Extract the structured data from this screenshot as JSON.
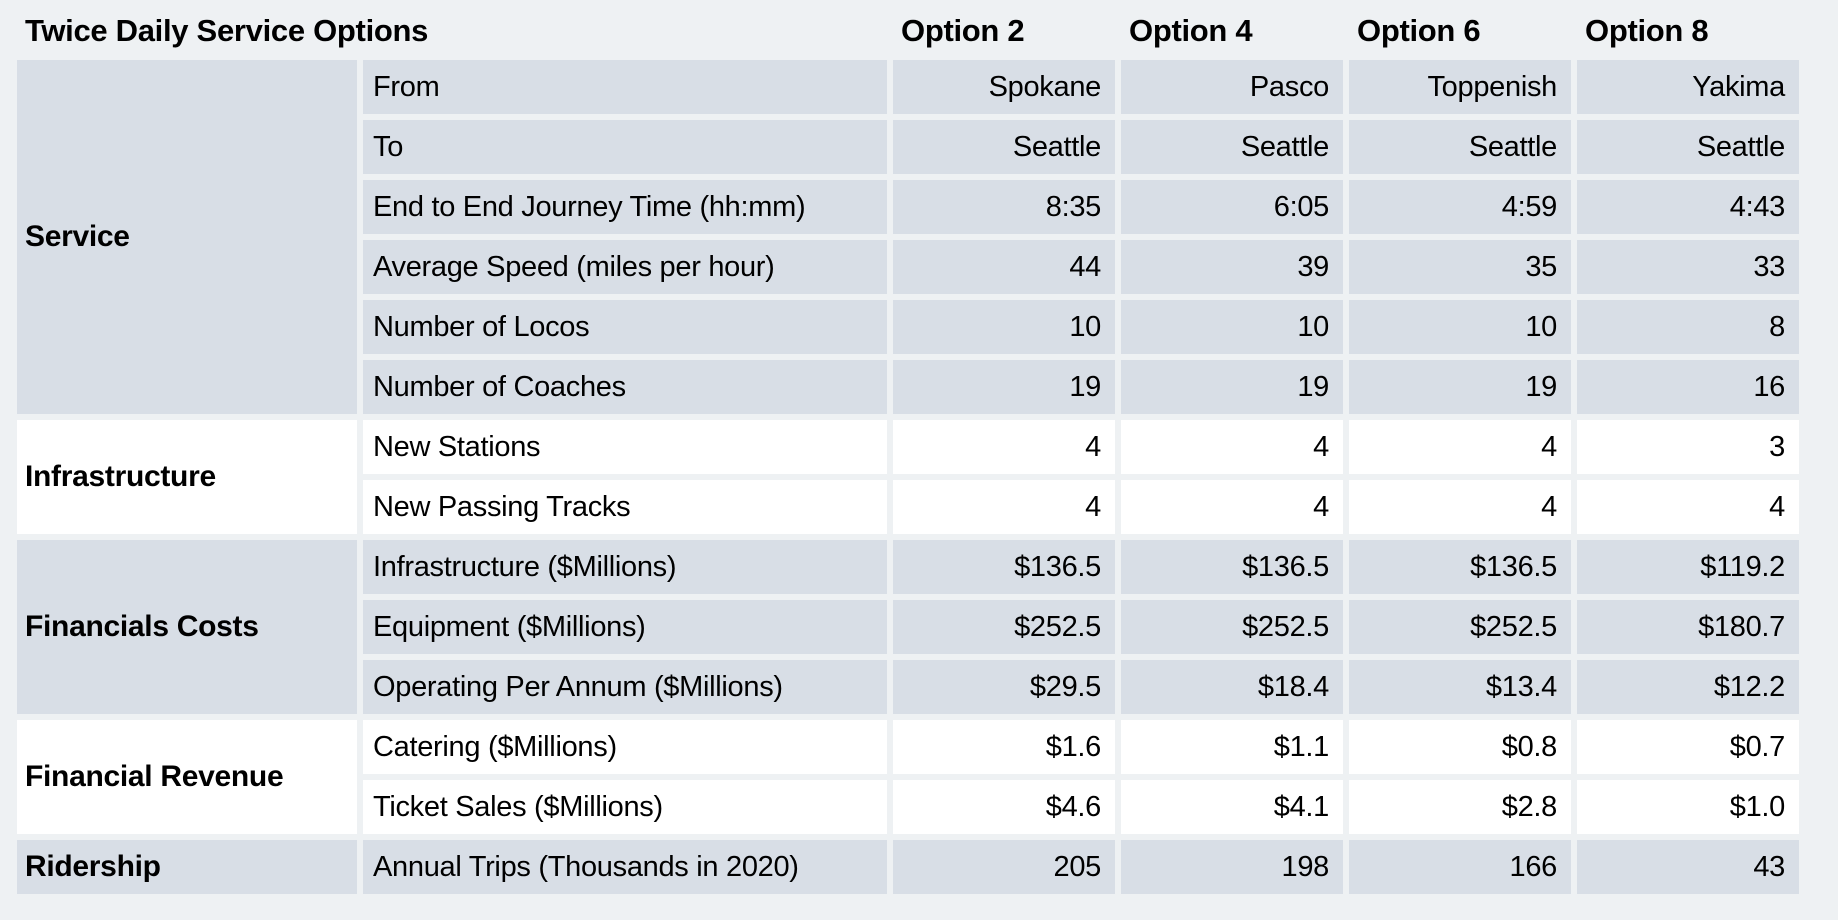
{
  "chart_data": {
    "type": "table",
    "title": "Twice Daily Service Options",
    "column_headers": [
      "Option 2",
      "Option 4",
      "Option 6",
      "Option 8"
    ],
    "groups": [
      {
        "name": "Service",
        "shaded": true,
        "rows": [
          {
            "label": "From",
            "values": [
              "Spokane",
              "Pasco",
              "Toppenish",
              "Yakima"
            ]
          },
          {
            "label": "To",
            "values": [
              "Seattle",
              "Seattle",
              "Seattle",
              "Seattle"
            ]
          },
          {
            "label": "End to End Journey Time (hh:mm)",
            "values": [
              "8:35",
              "6:05",
              "4:59",
              "4:43"
            ]
          },
          {
            "label": "Average Speed (miles per hour)",
            "values": [
              "44",
              "39",
              "35",
              "33"
            ]
          },
          {
            "label": "Number of Locos",
            "values": [
              "10",
              "10",
              "10",
              "8"
            ]
          },
          {
            "label": "Number of Coaches",
            "values": [
              "19",
              "19",
              "19",
              "16"
            ]
          }
        ]
      },
      {
        "name": "Infrastructure",
        "shaded": false,
        "rows": [
          {
            "label": "New Stations",
            "values": [
              "4",
              "4",
              "4",
              "3"
            ]
          },
          {
            "label": "New Passing Tracks",
            "values": [
              "4",
              "4",
              "4",
              "4"
            ]
          }
        ]
      },
      {
        "name": "Financials Costs",
        "shaded": true,
        "rows": [
          {
            "label": "Infrastructure ($Millions)",
            "values": [
              "$136.5",
              "$136.5",
              "$136.5",
              "$119.2"
            ]
          },
          {
            "label": "Equipment ($Millions)",
            "values": [
              "$252.5",
              "$252.5",
              "$252.5",
              "$180.7"
            ]
          },
          {
            "label": "Operating Per Annum ($Millions)",
            "values": [
              "$29.5",
              "$18.4",
              "$13.4",
              "$12.2"
            ]
          }
        ]
      },
      {
        "name": "Financial Revenue",
        "shaded": false,
        "rows": [
          {
            "label": "Catering ($Millions)",
            "values": [
              "$1.6",
              "$1.1",
              "$0.8",
              "$0.7"
            ]
          },
          {
            "label": "Ticket Sales ($Millions)",
            "values": [
              "$4.6",
              "$4.1",
              "$2.8",
              "$1.0"
            ]
          }
        ]
      },
      {
        "name": "Ridership",
        "shaded": true,
        "rows": [
          {
            "label": "Annual Trips (Thousands in 2020)",
            "values": [
              "205",
              "198",
              "166",
              "43"
            ]
          }
        ]
      }
    ],
    "layout": {
      "label_align": "left",
      "value_align": "right",
      "grid": "cell-spacing gaps, no border lines",
      "legend": "none"
    },
    "colors": {
      "shaded_row_bg": "#d8dee6",
      "plain_row_bg": "#ffffff",
      "page_bg": "#eef1f3",
      "text": "#000000"
    }
  }
}
